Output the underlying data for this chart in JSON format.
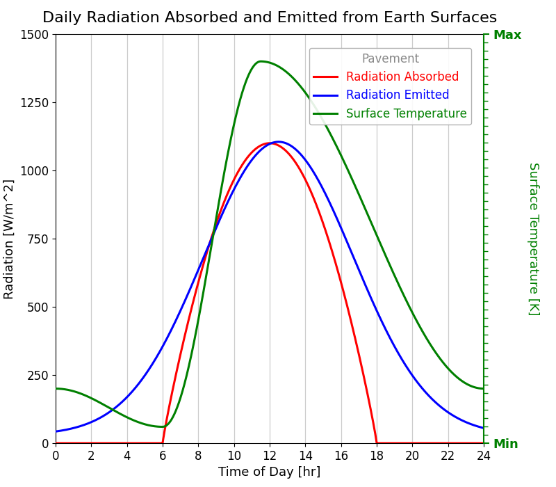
{
  "title": "Daily Radiation Absorbed and Emitted from Earth Surfaces",
  "xlabel": "Time of Day [hr]",
  "ylabel_left": "Radiation [W/m^2]",
  "ylabel_right": "Surface Temperature [K]",
  "legend_title": "Pavement",
  "legend_labels": [
    "Radiation Absorbed",
    "Radiation Emitted",
    "Surface Temperature"
  ],
  "legend_colors": [
    "red",
    "blue",
    "green"
  ],
  "line_colors": [
    "red",
    "blue",
    "green"
  ],
  "xlim": [
    0,
    24
  ],
  "ylim_left": [
    0,
    1500
  ],
  "right_axis_labels": [
    "Min",
    "Max"
  ],
  "background_color": "#ffffff",
  "title_fontsize": 16,
  "axis_label_fontsize": 13,
  "legend_fontsize": 12,
  "tick_label_fontsize": 12,
  "grid_color": "#cccccc",
  "right_label_color": "green",
  "line_width": 2.2
}
